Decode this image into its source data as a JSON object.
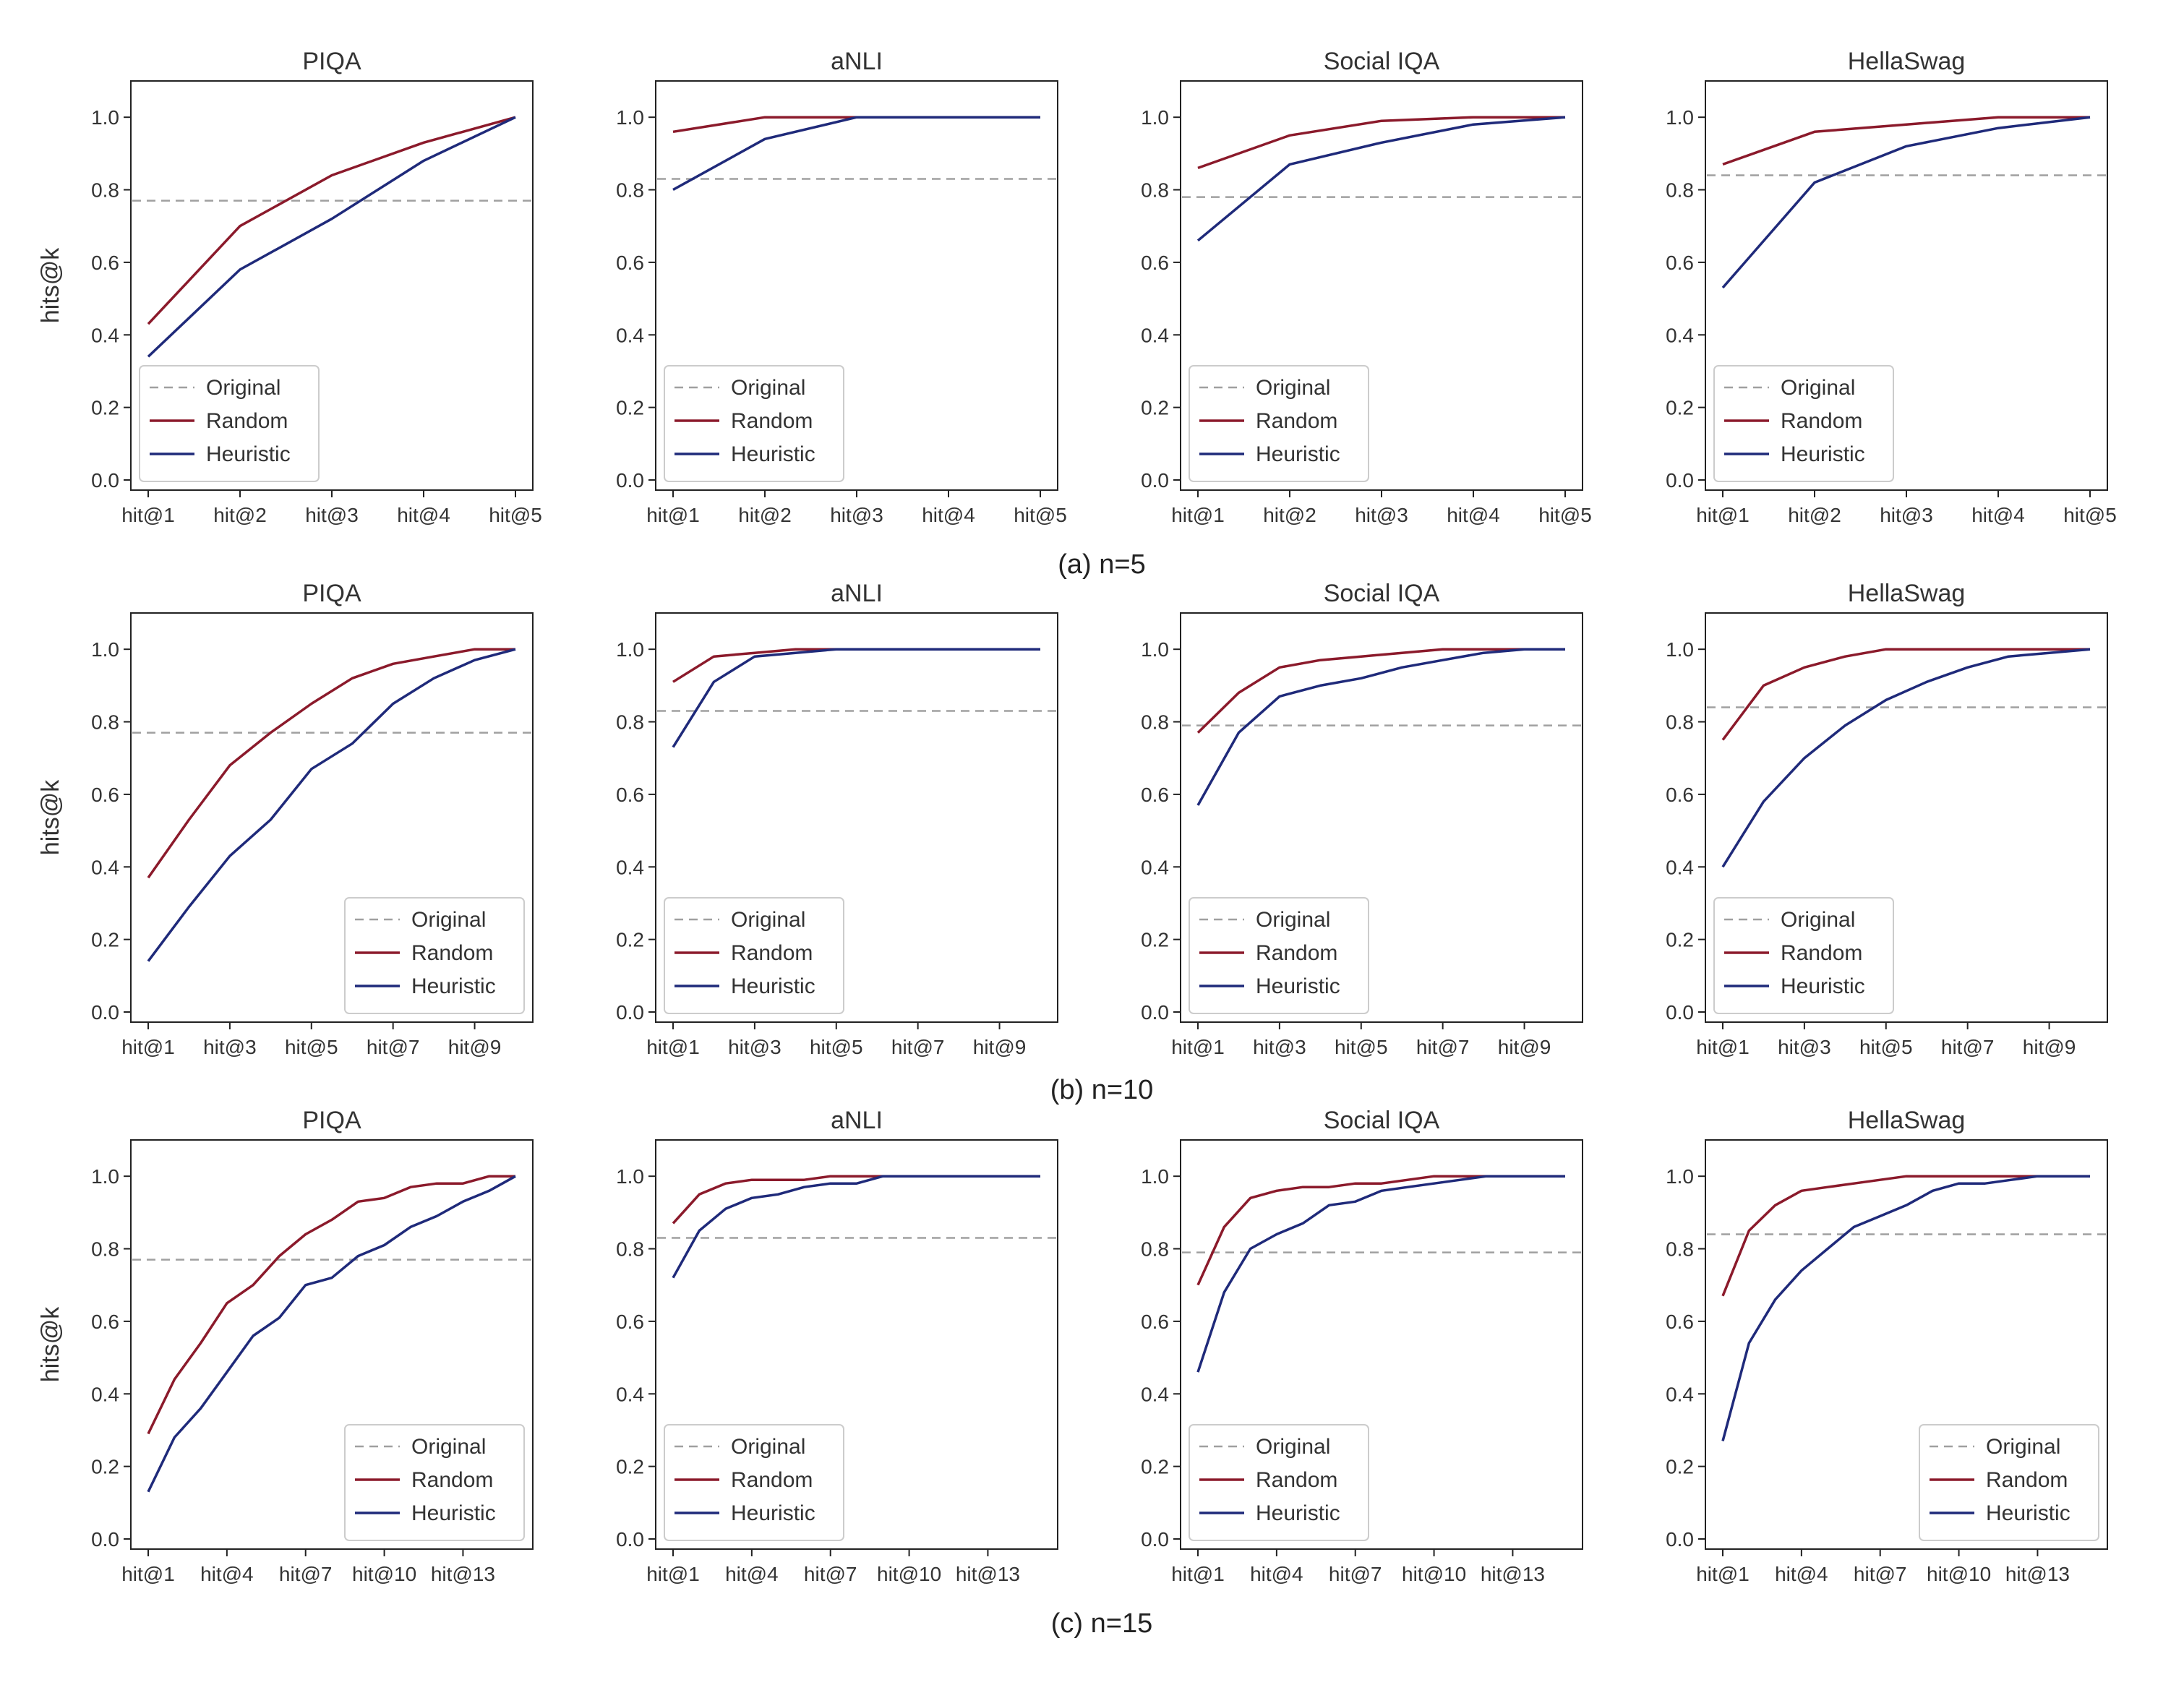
{
  "figure": {
    "captions": [
      "(a) n=5",
      "(b) n=10",
      "(c) n=15"
    ]
  },
  "colors": {
    "original": "#a0a0a0",
    "random": "#8b1a2b",
    "heuristic": "#1f2a7a",
    "axis": "#222222",
    "text": "#333333"
  },
  "chart_data": [
    {
      "type": "line",
      "row": 0,
      "col": 0,
      "title": "PIQA",
      "ylabel": "hits@k",
      "ylim": [
        0,
        1.1
      ],
      "x": [
        "hit@1",
        "hit@2",
        "hit@3",
        "hit@4",
        "hit@5"
      ],
      "tick_labels": [
        "hit@1",
        "hit@2",
        "hit@3",
        "hit@4",
        "hit@5"
      ],
      "yticks": [
        "0.0",
        "0.2",
        "0.4",
        "0.6",
        "0.8",
        "1.0"
      ],
      "legend": [
        "Original",
        "Random",
        "Heuristic"
      ],
      "legend_loc": "lower-left",
      "series": [
        {
          "name": "Original",
          "style": "dashed",
          "values": [
            0.77,
            0.77,
            0.77,
            0.77,
            0.77
          ]
        },
        {
          "name": "Random",
          "values": [
            0.43,
            0.7,
            0.84,
            0.93,
            1.0
          ]
        },
        {
          "name": "Heuristic",
          "values": [
            0.34,
            0.58,
            0.72,
            0.88,
            1.0
          ]
        }
      ]
    },
    {
      "type": "line",
      "row": 0,
      "col": 1,
      "title": "aNLI",
      "ylabel": "",
      "ylim": [
        0,
        1.1
      ],
      "x": [
        "hit@1",
        "hit@2",
        "hit@3",
        "hit@4",
        "hit@5"
      ],
      "tick_labels": [
        "hit@1",
        "hit@2",
        "hit@3",
        "hit@4",
        "hit@5"
      ],
      "yticks": [
        "0.0",
        "0.2",
        "0.4",
        "0.6",
        "0.8",
        "1.0"
      ],
      "legend": [
        "Original",
        "Random",
        "Heuristic"
      ],
      "legend_loc": "lower-left",
      "series": [
        {
          "name": "Original",
          "style": "dashed",
          "values": [
            0.83,
            0.83,
            0.83,
            0.83,
            0.83
          ]
        },
        {
          "name": "Random",
          "values": [
            0.96,
            1.0,
            1.0,
            1.0,
            1.0
          ]
        },
        {
          "name": "Heuristic",
          "values": [
            0.8,
            0.94,
            1.0,
            1.0,
            1.0
          ]
        }
      ]
    },
    {
      "type": "line",
      "row": 0,
      "col": 2,
      "title": "Social IQA",
      "ylabel": "",
      "ylim": [
        0,
        1.1
      ],
      "x": [
        "hit@1",
        "hit@2",
        "hit@3",
        "hit@4",
        "hit@5"
      ],
      "tick_labels": [
        "hit@1",
        "hit@2",
        "hit@3",
        "hit@4",
        "hit@5"
      ],
      "yticks": [
        "0.0",
        "0.2",
        "0.4",
        "0.6",
        "0.8",
        "1.0"
      ],
      "legend": [
        "Original",
        "Random",
        "Heuristic"
      ],
      "legend_loc": "lower-left",
      "series": [
        {
          "name": "Original",
          "style": "dashed",
          "values": [
            0.78,
            0.78,
            0.78,
            0.78,
            0.78
          ]
        },
        {
          "name": "Random",
          "values": [
            0.86,
            0.95,
            0.99,
            1.0,
            1.0
          ]
        },
        {
          "name": "Heuristic",
          "values": [
            0.66,
            0.87,
            0.93,
            0.98,
            1.0
          ]
        }
      ]
    },
    {
      "type": "line",
      "row": 0,
      "col": 3,
      "title": "HellaSwag",
      "ylabel": "",
      "ylim": [
        0,
        1.1
      ],
      "x": [
        "hit@1",
        "hit@2",
        "hit@3",
        "hit@4",
        "hit@5"
      ],
      "tick_labels": [
        "hit@1",
        "hit@2",
        "hit@3",
        "hit@4",
        "hit@5"
      ],
      "yticks": [
        "0.0",
        "0.2",
        "0.4",
        "0.6",
        "0.8",
        "1.0"
      ],
      "legend": [
        "Original",
        "Random",
        "Heuristic"
      ],
      "legend_loc": "lower-left",
      "series": [
        {
          "name": "Original",
          "style": "dashed",
          "values": [
            0.84,
            0.84,
            0.84,
            0.84,
            0.84
          ]
        },
        {
          "name": "Random",
          "values": [
            0.87,
            0.96,
            0.98,
            1.0,
            1.0
          ]
        },
        {
          "name": "Heuristic",
          "values": [
            0.53,
            0.82,
            0.92,
            0.97,
            1.0
          ]
        }
      ]
    },
    {
      "type": "line",
      "row": 1,
      "col": 0,
      "title": "PIQA",
      "ylabel": "hits@k",
      "ylim": [
        0,
        1.1
      ],
      "x": [
        "hit@1",
        "hit@2",
        "hit@3",
        "hit@4",
        "hit@5",
        "hit@6",
        "hit@7",
        "hit@8",
        "hit@9",
        "hit@10"
      ],
      "tick_labels": [
        "hit@1",
        "hit@3",
        "hit@5",
        "hit@7",
        "hit@9"
      ],
      "yticks": [
        "0.0",
        "0.2",
        "0.4",
        "0.6",
        "0.8",
        "1.0"
      ],
      "legend": [
        "Original",
        "Random",
        "Heuristic"
      ],
      "legend_loc": "lower-right",
      "series": [
        {
          "name": "Original",
          "style": "dashed",
          "values": [
            0.77,
            0.77,
            0.77,
            0.77,
            0.77,
            0.77,
            0.77,
            0.77,
            0.77,
            0.77
          ]
        },
        {
          "name": "Random",
          "values": [
            0.37,
            0.53,
            0.68,
            0.77,
            0.85,
            0.92,
            0.96,
            0.98,
            1.0,
            1.0
          ]
        },
        {
          "name": "Heuristic",
          "values": [
            0.14,
            0.29,
            0.43,
            0.53,
            0.67,
            0.74,
            0.85,
            0.92,
            0.97,
            1.0
          ]
        }
      ]
    },
    {
      "type": "line",
      "row": 1,
      "col": 1,
      "title": "aNLI",
      "ylabel": "",
      "ylim": [
        0,
        1.1
      ],
      "x": [
        "hit@1",
        "hit@2",
        "hit@3",
        "hit@4",
        "hit@5",
        "hit@6",
        "hit@7",
        "hit@8",
        "hit@9",
        "hit@10"
      ],
      "tick_labels": [
        "hit@1",
        "hit@3",
        "hit@5",
        "hit@7",
        "hit@9"
      ],
      "yticks": [
        "0.0",
        "0.2",
        "0.4",
        "0.6",
        "0.8",
        "1.0"
      ],
      "legend": [
        "Original",
        "Random",
        "Heuristic"
      ],
      "legend_loc": "lower-left",
      "series": [
        {
          "name": "Original",
          "style": "dashed",
          "values": [
            0.83,
            0.83,
            0.83,
            0.83,
            0.83,
            0.83,
            0.83,
            0.83,
            0.83,
            0.83
          ]
        },
        {
          "name": "Random",
          "values": [
            0.91,
            0.98,
            0.99,
            1.0,
            1.0,
            1.0,
            1.0,
            1.0,
            1.0,
            1.0
          ]
        },
        {
          "name": "Heuristic",
          "values": [
            0.73,
            0.91,
            0.98,
            0.99,
            1.0,
            1.0,
            1.0,
            1.0,
            1.0,
            1.0
          ]
        }
      ]
    },
    {
      "type": "line",
      "row": 1,
      "col": 2,
      "title": "Social IQA",
      "ylabel": "",
      "ylim": [
        0,
        1.1
      ],
      "x": [
        "hit@1",
        "hit@2",
        "hit@3",
        "hit@4",
        "hit@5",
        "hit@6",
        "hit@7",
        "hit@8",
        "hit@9",
        "hit@10"
      ],
      "tick_labels": [
        "hit@1",
        "hit@3",
        "hit@5",
        "hit@7",
        "hit@9"
      ],
      "yticks": [
        "0.0",
        "0.2",
        "0.4",
        "0.6",
        "0.8",
        "1.0"
      ],
      "legend": [
        "Original",
        "Random",
        "Heuristic"
      ],
      "legend_loc": "lower-left",
      "series": [
        {
          "name": "Original",
          "style": "dashed",
          "values": [
            0.79,
            0.79,
            0.79,
            0.79,
            0.79,
            0.79,
            0.79,
            0.79,
            0.79,
            0.79
          ]
        },
        {
          "name": "Random",
          "values": [
            0.77,
            0.88,
            0.95,
            0.97,
            0.98,
            0.99,
            1.0,
            1.0,
            1.0,
            1.0
          ]
        },
        {
          "name": "Heuristic",
          "values": [
            0.57,
            0.77,
            0.87,
            0.9,
            0.92,
            0.95,
            0.97,
            0.99,
            1.0,
            1.0
          ]
        }
      ]
    },
    {
      "type": "line",
      "row": 1,
      "col": 3,
      "title": "HellaSwag",
      "ylabel": "",
      "ylim": [
        0,
        1.1
      ],
      "x": [
        "hit@1",
        "hit@2",
        "hit@3",
        "hit@4",
        "hit@5",
        "hit@6",
        "hit@7",
        "hit@8",
        "hit@9",
        "hit@10"
      ],
      "tick_labels": [
        "hit@1",
        "hit@3",
        "hit@5",
        "hit@7",
        "hit@9"
      ],
      "yticks": [
        "0.0",
        "0.2",
        "0.4",
        "0.6",
        "0.8",
        "1.0"
      ],
      "legend": [
        "Original",
        "Random",
        "Heuristic"
      ],
      "legend_loc": "lower-left",
      "series": [
        {
          "name": "Original",
          "style": "dashed",
          "values": [
            0.84,
            0.84,
            0.84,
            0.84,
            0.84,
            0.84,
            0.84,
            0.84,
            0.84,
            0.84
          ]
        },
        {
          "name": "Random",
          "values": [
            0.75,
            0.9,
            0.95,
            0.98,
            1.0,
            1.0,
            1.0,
            1.0,
            1.0,
            1.0
          ]
        },
        {
          "name": "Heuristic",
          "values": [
            0.4,
            0.58,
            0.7,
            0.79,
            0.86,
            0.91,
            0.95,
            0.98,
            0.99,
            1.0
          ]
        }
      ]
    },
    {
      "type": "line",
      "row": 2,
      "col": 0,
      "title": "PIQA",
      "ylabel": "hits@k",
      "ylim": [
        0,
        1.1
      ],
      "x": [
        "hit@1",
        "hit@2",
        "hit@3",
        "hit@4",
        "hit@5",
        "hit@6",
        "hit@7",
        "hit@8",
        "hit@9",
        "hit@10",
        "hit@11",
        "hit@12",
        "hit@13",
        "hit@14",
        "hit@15"
      ],
      "tick_labels": [
        "hit@1",
        "hit@4",
        "hit@7",
        "hit@10",
        "hit@13"
      ],
      "yticks": [
        "0.0",
        "0.2",
        "0.4",
        "0.6",
        "0.8",
        "1.0"
      ],
      "legend": [
        "Original",
        "Random",
        "Heuristic"
      ],
      "legend_loc": "lower-right",
      "series": [
        {
          "name": "Original",
          "style": "dashed",
          "values": [
            0.77,
            0.77,
            0.77,
            0.77,
            0.77,
            0.77,
            0.77,
            0.77,
            0.77,
            0.77,
            0.77,
            0.77,
            0.77,
            0.77,
            0.77
          ]
        },
        {
          "name": "Random",
          "values": [
            0.29,
            0.44,
            0.54,
            0.65,
            0.7,
            0.78,
            0.84,
            0.88,
            0.93,
            0.94,
            0.97,
            0.98,
            0.98,
            1.0,
            1.0
          ]
        },
        {
          "name": "Heuristic",
          "values": [
            0.13,
            0.28,
            0.36,
            0.46,
            0.56,
            0.61,
            0.7,
            0.72,
            0.78,
            0.81,
            0.86,
            0.89,
            0.93,
            0.96,
            1.0
          ]
        }
      ]
    },
    {
      "type": "line",
      "row": 2,
      "col": 1,
      "title": "aNLI",
      "ylabel": "",
      "ylim": [
        0,
        1.1
      ],
      "x": [
        "hit@1",
        "hit@2",
        "hit@3",
        "hit@4",
        "hit@5",
        "hit@6",
        "hit@7",
        "hit@8",
        "hit@9",
        "hit@10",
        "hit@11",
        "hit@12",
        "hit@13",
        "hit@14",
        "hit@15"
      ],
      "tick_labels": [
        "hit@1",
        "hit@4",
        "hit@7",
        "hit@10",
        "hit@13"
      ],
      "yticks": [
        "0.0",
        "0.2",
        "0.4",
        "0.6",
        "0.8",
        "1.0"
      ],
      "legend": [
        "Original",
        "Random",
        "Heuristic"
      ],
      "legend_loc": "lower-left",
      "series": [
        {
          "name": "Original",
          "style": "dashed",
          "values": [
            0.83,
            0.83,
            0.83,
            0.83,
            0.83,
            0.83,
            0.83,
            0.83,
            0.83,
            0.83,
            0.83,
            0.83,
            0.83,
            0.83,
            0.83
          ]
        },
        {
          "name": "Random",
          "values": [
            0.87,
            0.95,
            0.98,
            0.99,
            0.99,
            0.99,
            1.0,
            1.0,
            1.0,
            1.0,
            1.0,
            1.0,
            1.0,
            1.0,
            1.0
          ]
        },
        {
          "name": "Heuristic",
          "values": [
            0.72,
            0.85,
            0.91,
            0.94,
            0.95,
            0.97,
            0.98,
            0.98,
            1.0,
            1.0,
            1.0,
            1.0,
            1.0,
            1.0,
            1.0
          ]
        }
      ]
    },
    {
      "type": "line",
      "row": 2,
      "col": 2,
      "title": "Social IQA",
      "ylabel": "",
      "ylim": [
        0,
        1.1
      ],
      "x": [
        "hit@1",
        "hit@2",
        "hit@3",
        "hit@4",
        "hit@5",
        "hit@6",
        "hit@7",
        "hit@8",
        "hit@9",
        "hit@10",
        "hit@11",
        "hit@12",
        "hit@13",
        "hit@14",
        "hit@15"
      ],
      "tick_labels": [
        "hit@1",
        "hit@4",
        "hit@7",
        "hit@10",
        "hit@13"
      ],
      "yticks": [
        "0.0",
        "0.2",
        "0.4",
        "0.6",
        "0.8",
        "1.0"
      ],
      "legend": [
        "Original",
        "Random",
        "Heuristic"
      ],
      "legend_loc": "lower-left",
      "series": [
        {
          "name": "Original",
          "style": "dashed",
          "values": [
            0.79,
            0.79,
            0.79,
            0.79,
            0.79,
            0.79,
            0.79,
            0.79,
            0.79,
            0.79,
            0.79,
            0.79,
            0.79,
            0.79,
            0.79
          ]
        },
        {
          "name": "Random",
          "values": [
            0.7,
            0.86,
            0.94,
            0.96,
            0.97,
            0.97,
            0.98,
            0.98,
            0.99,
            1.0,
            1.0,
            1.0,
            1.0,
            1.0,
            1.0
          ]
        },
        {
          "name": "Heuristic",
          "values": [
            0.46,
            0.68,
            0.8,
            0.84,
            0.87,
            0.92,
            0.93,
            0.96,
            0.97,
            0.98,
            0.99,
            1.0,
            1.0,
            1.0,
            1.0
          ]
        }
      ]
    },
    {
      "type": "line",
      "row": 2,
      "col": 3,
      "title": "HellaSwag",
      "ylabel": "",
      "ylim": [
        0,
        1.1
      ],
      "x": [
        "hit@1",
        "hit@2",
        "hit@3",
        "hit@4",
        "hit@5",
        "hit@6",
        "hit@7",
        "hit@8",
        "hit@9",
        "hit@10",
        "hit@11",
        "hit@12",
        "hit@13",
        "hit@14",
        "hit@15"
      ],
      "tick_labels": [
        "hit@1",
        "hit@4",
        "hit@7",
        "hit@10",
        "hit@13"
      ],
      "yticks": [
        "0.0",
        "0.2",
        "0.4",
        "0.6",
        "0.8",
        "1.0"
      ],
      "legend": [
        "Original",
        "Random",
        "Heuristic"
      ],
      "legend_loc": "lower-right",
      "series": [
        {
          "name": "Original",
          "style": "dashed",
          "values": [
            0.84,
            0.84,
            0.84,
            0.84,
            0.84,
            0.84,
            0.84,
            0.84,
            0.84,
            0.84,
            0.84,
            0.84,
            0.84,
            0.84,
            0.84
          ]
        },
        {
          "name": "Random",
          "values": [
            0.67,
            0.85,
            0.92,
            0.96,
            0.97,
            0.98,
            0.99,
            1.0,
            1.0,
            1.0,
            1.0,
            1.0,
            1.0,
            1.0,
            1.0
          ]
        },
        {
          "name": "Heuristic",
          "values": [
            0.27,
            0.54,
            0.66,
            0.74,
            0.8,
            0.86,
            0.89,
            0.92,
            0.96,
            0.98,
            0.98,
            0.99,
            1.0,
            1.0,
            1.0
          ]
        }
      ]
    }
  ]
}
